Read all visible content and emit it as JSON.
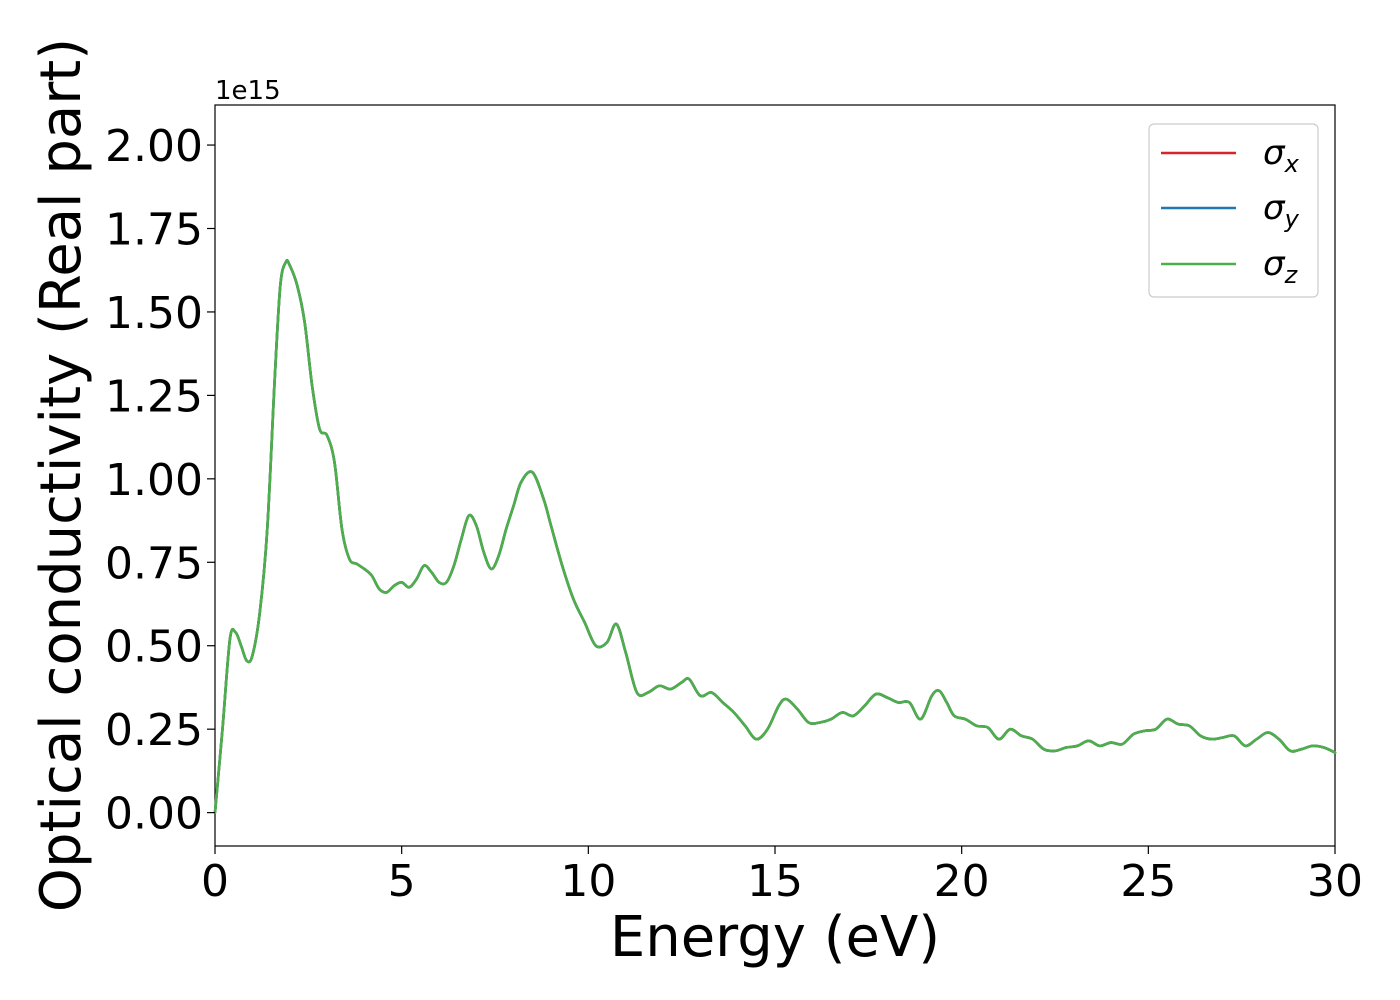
{
  "chart_data": {
    "type": "line",
    "title": "",
    "xlabel": "Energy (eV)",
    "ylabel": "Optical conductivity (Real part)",
    "y_offset_label": "1e15",
    "xlim": [
      0,
      30
    ],
    "ylim": [
      -0.1,
      2.12
    ],
    "y_scale_factor": 1000000000000000.0,
    "grid": false,
    "legend_position": "top-right",
    "x_ticks": [
      0,
      5,
      10,
      15,
      20,
      25,
      30
    ],
    "x_tick_labels": [
      "0",
      "5",
      "10",
      "15",
      "20",
      "25",
      "30"
    ],
    "y_ticks": [
      0.0,
      0.25,
      0.5,
      0.75,
      1.0,
      1.25,
      1.5,
      1.75,
      2.0
    ],
    "y_tick_labels": [
      "0.00",
      "0.25",
      "0.50",
      "0.75",
      "1.00",
      "1.25",
      "1.50",
      "1.75",
      "2.00"
    ],
    "x": [
      0,
      0.2,
      0.4,
      0.55,
      0.7,
      0.85,
      1.0,
      1.2,
      1.4,
      1.6,
      1.75,
      1.9,
      2.0,
      2.2,
      2.4,
      2.6,
      2.8,
      3.0,
      3.2,
      3.4,
      3.6,
      3.8,
      4.0,
      4.2,
      4.4,
      4.6,
      4.8,
      5.0,
      5.2,
      5.4,
      5.6,
      5.8,
      6.0,
      6.2,
      6.4,
      6.6,
      6.8,
      7.0,
      7.2,
      7.4,
      7.6,
      7.8,
      8.0,
      8.2,
      8.5,
      8.8,
      9.0,
      9.3,
      9.6,
      9.9,
      10.2,
      10.5,
      10.75,
      11.0,
      11.3,
      11.6,
      11.9,
      12.2,
      12.5,
      12.7,
      13.0,
      13.3,
      13.6,
      13.9,
      14.2,
      14.5,
      14.8,
      15.1,
      15.3,
      15.6,
      15.9,
      16.2,
      16.5,
      16.8,
      17.1,
      17.4,
      17.7,
      18.0,
      18.3,
      18.6,
      18.9,
      19.2,
      19.4,
      19.6,
      19.8,
      20.1,
      20.4,
      20.7,
      21.0,
      21.3,
      21.6,
      21.9,
      22.2,
      22.5,
      22.8,
      23.1,
      23.4,
      23.7,
      24.0,
      24.3,
      24.6,
      24.9,
      25.2,
      25.5,
      25.8,
      26.1,
      26.4,
      26.7,
      27.0,
      27.3,
      27.6,
      27.9,
      28.2,
      28.5,
      28.8,
      29.1,
      29.4,
      29.7,
      30.0
    ],
    "series": [
      {
        "name": "σx",
        "color": "#d62728",
        "values": [
          0.0,
          0.25,
          0.52,
          0.54,
          0.5,
          0.455,
          0.47,
          0.6,
          0.85,
          1.3,
          1.58,
          1.65,
          1.64,
          1.58,
          1.47,
          1.28,
          1.15,
          1.13,
          1.05,
          0.85,
          0.76,
          0.745,
          0.73,
          0.71,
          0.67,
          0.66,
          0.68,
          0.69,
          0.675,
          0.7,
          0.74,
          0.72,
          0.69,
          0.69,
          0.74,
          0.82,
          0.89,
          0.86,
          0.78,
          0.73,
          0.77,
          0.85,
          0.92,
          0.99,
          1.02,
          0.94,
          0.86,
          0.74,
          0.64,
          0.57,
          0.5,
          0.51,
          0.565,
          0.48,
          0.36,
          0.36,
          0.38,
          0.37,
          0.39,
          0.4,
          0.35,
          0.36,
          0.33,
          0.3,
          0.26,
          0.22,
          0.25,
          0.32,
          0.34,
          0.31,
          0.27,
          0.27,
          0.28,
          0.3,
          0.29,
          0.32,
          0.355,
          0.345,
          0.33,
          0.33,
          0.28,
          0.35,
          0.365,
          0.33,
          0.29,
          0.28,
          0.26,
          0.255,
          0.22,
          0.25,
          0.23,
          0.22,
          0.19,
          0.185,
          0.195,
          0.2,
          0.215,
          0.2,
          0.21,
          0.205,
          0.235,
          0.245,
          0.25,
          0.28,
          0.265,
          0.26,
          0.23,
          0.22,
          0.225,
          0.23,
          0.2,
          0.22,
          0.24,
          0.22,
          0.185,
          0.19,
          0.2,
          0.195,
          0.18
        ]
      },
      {
        "name": "σy",
        "color": "#1f77b4",
        "values": [
          0.0,
          0.25,
          0.52,
          0.54,
          0.5,
          0.455,
          0.47,
          0.6,
          0.85,
          1.3,
          1.58,
          1.65,
          1.64,
          1.58,
          1.47,
          1.28,
          1.15,
          1.13,
          1.05,
          0.85,
          0.76,
          0.745,
          0.73,
          0.71,
          0.67,
          0.66,
          0.68,
          0.69,
          0.675,
          0.7,
          0.74,
          0.72,
          0.69,
          0.69,
          0.74,
          0.82,
          0.89,
          0.86,
          0.78,
          0.73,
          0.77,
          0.85,
          0.92,
          0.99,
          1.02,
          0.94,
          0.86,
          0.74,
          0.64,
          0.57,
          0.5,
          0.51,
          0.565,
          0.48,
          0.36,
          0.36,
          0.38,
          0.37,
          0.39,
          0.4,
          0.35,
          0.36,
          0.33,
          0.3,
          0.26,
          0.22,
          0.25,
          0.32,
          0.34,
          0.31,
          0.27,
          0.27,
          0.28,
          0.3,
          0.29,
          0.32,
          0.355,
          0.345,
          0.33,
          0.33,
          0.28,
          0.35,
          0.365,
          0.33,
          0.29,
          0.28,
          0.26,
          0.255,
          0.22,
          0.25,
          0.23,
          0.22,
          0.19,
          0.185,
          0.195,
          0.2,
          0.215,
          0.2,
          0.21,
          0.205,
          0.235,
          0.245,
          0.25,
          0.28,
          0.265,
          0.26,
          0.23,
          0.22,
          0.225,
          0.23,
          0.2,
          0.22,
          0.24,
          0.22,
          0.185,
          0.19,
          0.2,
          0.195,
          0.18
        ]
      },
      {
        "name": "σz",
        "color": "#4daf4a",
        "values": [
          0.0,
          0.25,
          0.52,
          0.54,
          0.5,
          0.455,
          0.47,
          0.6,
          0.85,
          1.3,
          1.58,
          1.65,
          1.64,
          1.58,
          1.47,
          1.28,
          1.15,
          1.13,
          1.05,
          0.85,
          0.76,
          0.745,
          0.73,
          0.71,
          0.67,
          0.66,
          0.68,
          0.69,
          0.675,
          0.7,
          0.74,
          0.72,
          0.69,
          0.69,
          0.74,
          0.82,
          0.89,
          0.86,
          0.78,
          0.73,
          0.77,
          0.85,
          0.92,
          0.99,
          1.02,
          0.94,
          0.86,
          0.74,
          0.64,
          0.57,
          0.5,
          0.51,
          0.565,
          0.48,
          0.36,
          0.36,
          0.38,
          0.37,
          0.39,
          0.4,
          0.35,
          0.36,
          0.33,
          0.3,
          0.26,
          0.22,
          0.25,
          0.32,
          0.34,
          0.31,
          0.27,
          0.27,
          0.28,
          0.3,
          0.29,
          0.32,
          0.355,
          0.345,
          0.33,
          0.33,
          0.28,
          0.35,
          0.365,
          0.33,
          0.29,
          0.28,
          0.26,
          0.255,
          0.22,
          0.25,
          0.23,
          0.22,
          0.19,
          0.185,
          0.195,
          0.2,
          0.215,
          0.2,
          0.21,
          0.205,
          0.235,
          0.245,
          0.25,
          0.28,
          0.265,
          0.26,
          0.23,
          0.22,
          0.225,
          0.23,
          0.2,
          0.22,
          0.24,
          0.22,
          0.185,
          0.19,
          0.2,
          0.195,
          0.18
        ]
      }
    ],
    "legend": [
      {
        "symbol": "σ",
        "subscript": "x",
        "color": "#d62728"
      },
      {
        "symbol": "σ",
        "subscript": "y",
        "color": "#1f77b4"
      },
      {
        "symbol": "σ",
        "subscript": "z",
        "color": "#4daf4a"
      }
    ]
  }
}
